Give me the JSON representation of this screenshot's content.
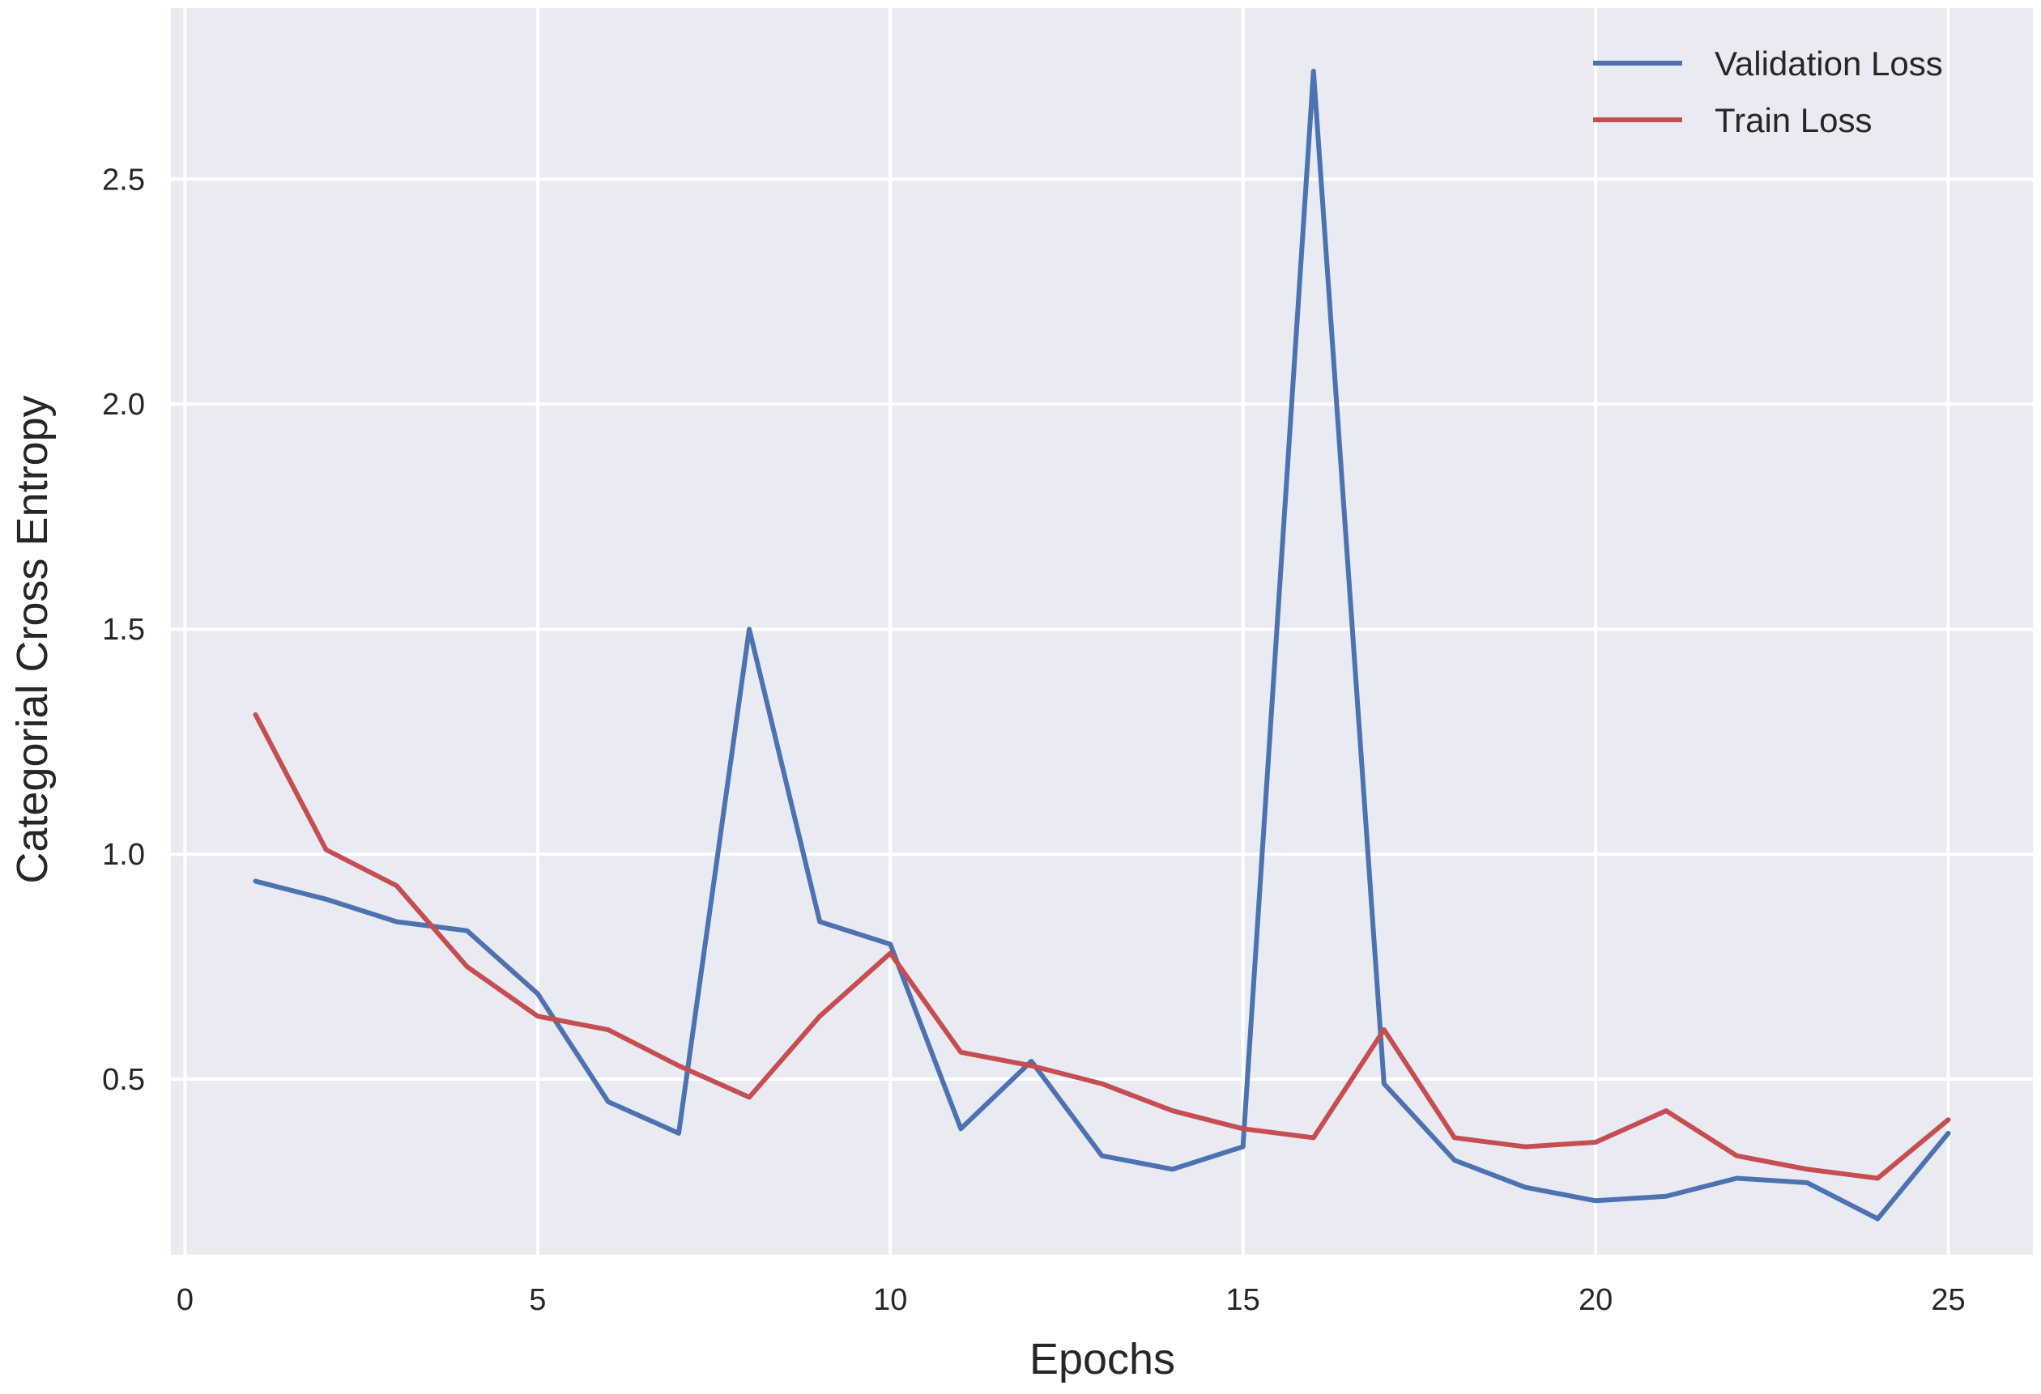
{
  "chart_data": {
    "type": "line",
    "xlabel": "Epochs",
    "ylabel": "Categorial Cross Entropy",
    "xlim": [
      -0.2,
      26.2
    ],
    "ylim": [
      0.11,
      2.88
    ],
    "xticks": [
      0,
      5,
      10,
      15,
      20,
      25
    ],
    "xtick_labels": [
      "0",
      "5",
      "10",
      "15",
      "20",
      "25"
    ],
    "yticks": [
      0.5,
      1.0,
      1.5,
      2.0,
      2.5
    ],
    "ytick_labels": [
      "0.5",
      "1.0",
      "1.5",
      "2.0",
      "2.5"
    ],
    "grid": true,
    "legend_position": "top-right",
    "x": [
      1,
      2,
      3,
      4,
      5,
      6,
      7,
      8,
      9,
      10,
      11,
      12,
      13,
      14,
      15,
      16,
      17,
      18,
      19,
      20,
      21,
      22,
      23,
      24,
      25
    ],
    "series": [
      {
        "name": "Validation Loss",
        "color": "#4c72b0",
        "values": [
          0.94,
          0.9,
          0.85,
          0.83,
          0.69,
          0.45,
          0.38,
          1.5,
          0.85,
          0.8,
          0.39,
          0.54,
          0.33,
          0.3,
          0.35,
          2.74,
          0.49,
          0.32,
          0.26,
          0.23,
          0.24,
          0.28,
          0.27,
          0.19,
          0.38
        ]
      },
      {
        "name": "Train Loss",
        "color": "#c44e52",
        "values": [
          1.31,
          1.01,
          0.93,
          0.75,
          0.64,
          0.61,
          0.53,
          0.46,
          0.64,
          0.78,
          0.56,
          0.53,
          0.49,
          0.43,
          0.39,
          0.37,
          0.61,
          0.37,
          0.35,
          0.36,
          0.43,
          0.33,
          0.3,
          0.28,
          0.41
        ]
      }
    ],
    "colors": {
      "background": "#eaeaf2",
      "grid": "#ffffff"
    }
  }
}
